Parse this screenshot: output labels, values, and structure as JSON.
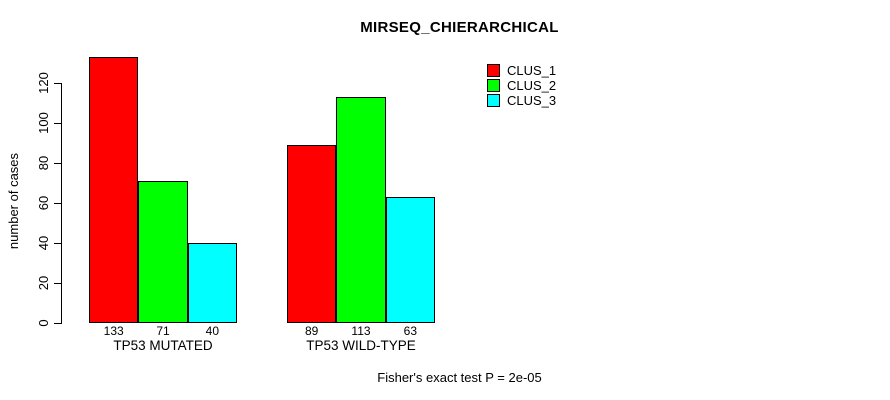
{
  "title": "MIRSEQ_CHIERARCHICAL",
  "footer_note": "Fisher's exact test P = 2e-05",
  "colors": {
    "background": "#FFFFFF",
    "axis": "#000000",
    "clus_1": "#FF0000",
    "clus_2": "#00FF00",
    "clus_3": "#00FFFF"
  },
  "chart_data": {
    "type": "bar",
    "title": "MIRSEQ_CHIERARCHICAL",
    "categories": [
      "TP53 MUTATED",
      "TP53 WILD-TYPE"
    ],
    "series": [
      {
        "name": "CLUS_1",
        "color": "#FF0000",
        "values": [
          133,
          89
        ]
      },
      {
        "name": "CLUS_2",
        "color": "#00FF00",
        "values": [
          71,
          113
        ]
      },
      {
        "name": "CLUS_3",
        "color": "#00FFFF",
        "values": [
          40,
          63
        ]
      }
    ],
    "show_value_labels": true,
    "value_labels": [
      [
        "133",
        "71",
        "40"
      ],
      [
        "89",
        "113",
        "63"
      ]
    ],
    "xlabel": "",
    "ylabel": "number of cases",
    "yticks": [
      0,
      20,
      40,
      60,
      80,
      100,
      120
    ],
    "ylim": [
      0,
      133
    ],
    "grid": false,
    "legend_position": "top-right-inside",
    "annotation": "Fisher's exact test P = 2e-05"
  }
}
